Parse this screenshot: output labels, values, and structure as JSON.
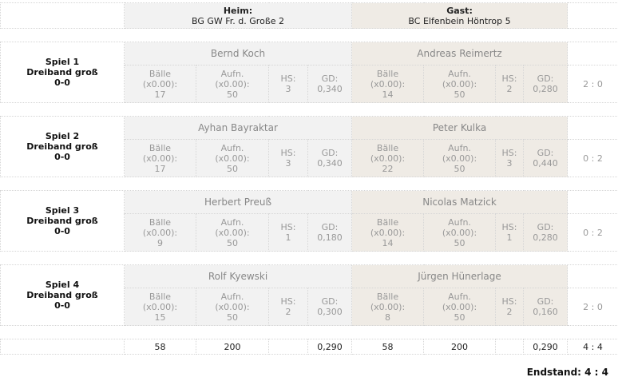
{
  "header": {
    "home_label": "Heim:",
    "home_team": "BG GW Fr. d. Große 2",
    "guest_label": "Gast:",
    "guest_team": "BC Elfenbein Höntrop 5"
  },
  "stat_labels": {
    "balls": "Bälle",
    "factor": "(x0.00):",
    "innings": "Aufn.",
    "hs": "HS:",
    "gd": "GD:"
  },
  "games": [
    {
      "title": "Spiel 1",
      "discipline": "Dreiband groß",
      "score": "0-0",
      "home": {
        "name": "Bernd Koch",
        "balls": "17",
        "innings": "50",
        "hs": "3",
        "gd": "0,340"
      },
      "guest": {
        "name": "Andreas Reimertz",
        "balls": "14",
        "innings": "50",
        "hs": "2",
        "gd": "0,280"
      },
      "result": "2 : 0"
    },
    {
      "title": "Spiel 2",
      "discipline": "Dreiband groß",
      "score": "0-0",
      "home": {
        "name": "Ayhan Bayraktar",
        "balls": "17",
        "innings": "50",
        "hs": "3",
        "gd": "0,340"
      },
      "guest": {
        "name": "Peter Kulka",
        "balls": "22",
        "innings": "50",
        "hs": "3",
        "gd": "0,440"
      },
      "result": "0 : 2"
    },
    {
      "title": "Spiel 3",
      "discipline": "Dreiband groß",
      "score": "0-0",
      "home": {
        "name": "Herbert Preuß",
        "balls": "9",
        "innings": "50",
        "hs": "1",
        "gd": "0,180"
      },
      "guest": {
        "name": "Nicolas Matzick",
        "balls": "14",
        "innings": "50",
        "hs": "1",
        "gd": "0,280"
      },
      "result": "0 : 2"
    },
    {
      "title": "Spiel 4",
      "discipline": "Dreiband groß",
      "score": "0-0",
      "home": {
        "name": "Rolf Kyewski",
        "balls": "15",
        "innings": "50",
        "hs": "2",
        "gd": "0,300"
      },
      "guest": {
        "name": "Jürgen Hünerlage",
        "balls": "8",
        "innings": "50",
        "hs": "2",
        "gd": "0,160"
      },
      "result": "2 : 0"
    }
  ],
  "totals": {
    "home_balls": "58",
    "home_innings": "200",
    "home_gd": "0,290",
    "guest_balls": "58",
    "guest_innings": "200",
    "guest_gd": "0,290",
    "result": "4 : 4"
  },
  "final": "Endstand: 4 : 4"
}
